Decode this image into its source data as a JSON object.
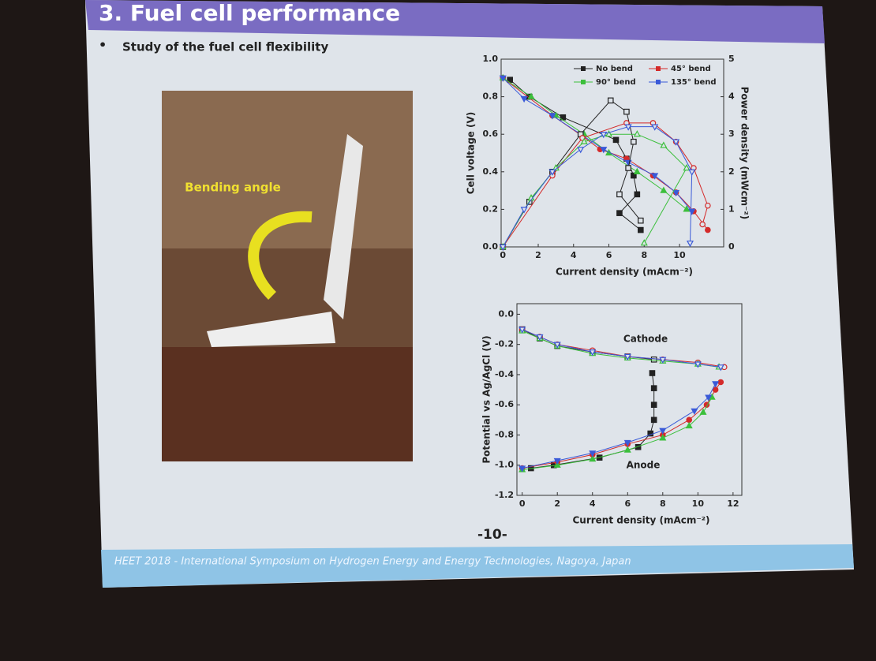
{
  "slide": {
    "title": "3. Fuel cell performance",
    "bullet": "Study of the fuel cell flexibility",
    "photo_label": "Bending angle",
    "page_number": "-10-",
    "footer": "HEET 2018 - International Symposium on Hydrogen Energy and Energy Technologies, Nagoya, Japan"
  },
  "chart_data": [
    {
      "type": "line",
      "xlabel": "Current density (mAcm⁻²)",
      "ylabel": "Cell voltage (V)",
      "y2label": "Power density (mWcm⁻²)",
      "xlim": [
        -0.1,
        12.5
      ],
      "ylim": [
        0,
        1.0
      ],
      "y2lim": [
        0,
        5
      ],
      "xticks": [
        0,
        2,
        4,
        6,
        8,
        10
      ],
      "yticks": [
        {
          "value": 0,
          "label": "0.0"
        },
        {
          "value": 0.2,
          "label": "0.2"
        },
        {
          "value": 0.4,
          "label": "0.4"
        },
        {
          "value": 0.6,
          "label": "0.6"
        },
        {
          "value": 0.8,
          "label": "0.8"
        },
        {
          "value": 1.0,
          "label": "1.0"
        }
      ],
      "y2ticks": [
        0,
        1,
        2,
        3,
        4,
        5
      ],
      "legend": "upper right",
      "series": [
        {
          "name": "No bend",
          "color": "#222222",
          "marker": "square",
          "filled": true,
          "x": [
            0.4,
            1.5,
            3.4,
            6.4,
            7.0,
            7.4,
            7.6,
            6.6,
            7.8
          ],
          "values": [
            0.89,
            0.8,
            0.69,
            0.57,
            0.47,
            0.38,
            0.28,
            0.18,
            0.09
          ]
        },
        {
          "name": "45° bend",
          "color": "#d42a2a",
          "marker": "circle",
          "filled": true,
          "x": [
            0,
            2.8,
            4.5,
            5.5,
            7.0,
            8.5,
            9.8,
            10.8,
            11.6
          ],
          "values": [
            0.9,
            0.7,
            0.59,
            0.52,
            0.47,
            0.38,
            0.29,
            0.19,
            0.09
          ]
        },
        {
          "name": "90° bend",
          "color": "#3cbf3c",
          "marker": "triangle-up",
          "filled": true,
          "x": [
            0,
            1.6,
            3.0,
            4.6,
            6.0,
            7.6,
            9.1,
            10.4
          ],
          "values": [
            0.9,
            0.8,
            0.7,
            0.6,
            0.5,
            0.4,
            0.3,
            0.2
          ]
        },
        {
          "name": "135° bend",
          "color": "#3a5ad8",
          "marker": "triangle-down",
          "filled": true,
          "x": [
            0,
            1.2,
            2.8,
            4.4,
            5.7,
            7.1,
            8.6,
            9.8,
            10.7
          ],
          "values": [
            0.9,
            0.79,
            0.7,
            0.6,
            0.52,
            0.45,
            0.38,
            0.29,
            0.19
          ]
        },
        {
          "color": "#222222",
          "marker": "square",
          "filled": false,
          "axis": "y2",
          "x": [
            0,
            1.5,
            2.8,
            4.4,
            6.1,
            7.0,
            7.4,
            7.1,
            6.6,
            7.8
          ],
          "values": [
            0,
            1.2,
            2.0,
            3.0,
            3.9,
            3.6,
            2.8,
            2.1,
            1.4,
            0.7
          ]
        },
        {
          "color": "#d42a2a",
          "marker": "circle",
          "filled": false,
          "axis": "y2",
          "x": [
            0,
            2.8,
            4.5,
            7.0,
            8.5,
            9.8,
            10.8,
            11.6,
            11.3
          ],
          "values": [
            0,
            1.9,
            2.9,
            3.3,
            3.3,
            2.8,
            2.1,
            1.1,
            0.6
          ]
        },
        {
          "color": "#3cbf3c",
          "marker": "triangle-up",
          "filled": false,
          "axis": "y2",
          "x": [
            0,
            1.6,
            3.0,
            4.6,
            6.0,
            7.6,
            9.1,
            10.4,
            8.0
          ],
          "values": [
            0,
            1.3,
            2.1,
            2.8,
            3.0,
            3.0,
            2.7,
            2.1,
            0.1
          ]
        },
        {
          "color": "#3a5ad8",
          "marker": "triangle-down",
          "filled": false,
          "axis": "y2",
          "x": [
            0,
            1.2,
            2.8,
            4.4,
            5.7,
            7.1,
            8.6,
            9.8,
            10.7,
            10.6
          ],
          "values": [
            0,
            1.0,
            2.0,
            2.6,
            3.0,
            3.2,
            3.2,
            2.8,
            2.0,
            0.1
          ]
        }
      ]
    },
    {
      "type": "line",
      "xlabel": "Current density (mAcm⁻²)",
      "ylabel": "Potential vs Ag/AgCl (V)",
      "xlim": [
        -0.3,
        12.5
      ],
      "ylim": [
        -1.2,
        0.07
      ],
      "xticks": [
        0,
        2,
        4,
        6,
        8,
        10,
        12
      ],
      "yticks": [
        {
          "value": 0,
          "label": "0.0"
        },
        {
          "value": -0.2,
          "label": "-0.2"
        },
        {
          "value": -0.4,
          "label": "-0.4"
        },
        {
          "value": -0.6,
          "label": "-0.6"
        },
        {
          "value": -0.8,
          "label": "-0.8"
        },
        {
          "value": -1.0,
          "label": "-1.0"
        },
        {
          "value": -1.2,
          "label": "-1.2"
        }
      ],
      "annotations": [
        "Cathode",
        "Anode"
      ],
      "series": [
        {
          "color": "#222222",
          "marker": "square",
          "filled": false,
          "x": [
            0,
            1,
            2,
            4,
            6,
            7.5
          ],
          "values": [
            -0.1,
            -0.16,
            -0.21,
            -0.25,
            -0.28,
            -0.3
          ]
        },
        {
          "color": "#d42a2a",
          "marker": "circle",
          "filled": false,
          "x": [
            0,
            1,
            2,
            4,
            6,
            8,
            10,
            11.5
          ],
          "values": [
            -0.1,
            -0.15,
            -0.2,
            -0.24,
            -0.28,
            -0.3,
            -0.32,
            -0.35
          ]
        },
        {
          "color": "#3cbf3c",
          "marker": "triangle-up",
          "filled": false,
          "x": [
            0,
            1,
            2,
            4,
            6,
            8,
            10,
            11.2
          ],
          "values": [
            -0.11,
            -0.16,
            -0.21,
            -0.26,
            -0.29,
            -0.31,
            -0.33,
            -0.35
          ]
        },
        {
          "color": "#3a5ad8",
          "marker": "triangle-down",
          "filled": false,
          "x": [
            0,
            1,
            2,
            4,
            6,
            8,
            10,
            11.3
          ],
          "values": [
            -0.1,
            -0.15,
            -0.2,
            -0.25,
            -0.28,
            -0.3,
            -0.33,
            -0.35
          ]
        },
        {
          "color": "#222222",
          "marker": "square",
          "filled": true,
          "x": [
            0.5,
            1.8,
            4.4,
            6.6,
            7.3,
            7.5,
            7.5,
            7.5,
            7.4
          ],
          "values": [
            -1.02,
            -1.0,
            -0.95,
            -0.88,
            -0.79,
            -0.7,
            -0.6,
            -0.49,
            -0.39
          ]
        },
        {
          "color": "#d42a2a",
          "marker": "circle",
          "filled": true,
          "x": [
            0,
            2,
            4,
            6,
            8,
            9.5,
            10.5,
            11,
            11.3
          ],
          "values": [
            -1.02,
            -0.98,
            -0.93,
            -0.86,
            -0.8,
            -0.7,
            -0.6,
            -0.5,
            -0.45
          ]
        },
        {
          "color": "#3cbf3c",
          "marker": "triangle-up",
          "filled": true,
          "x": [
            0,
            2,
            4,
            6,
            8,
            9.5,
            10.3,
            10.8
          ],
          "values": [
            -1.03,
            -1.0,
            -0.96,
            -0.9,
            -0.82,
            -0.74,
            -0.65,
            -0.55
          ]
        },
        {
          "color": "#3a5ad8",
          "marker": "triangle-down",
          "filled": true,
          "x": [
            0,
            2,
            4,
            6,
            8,
            9.8,
            10.6,
            11
          ],
          "values": [
            -1.02,
            -0.97,
            -0.92,
            -0.85,
            -0.77,
            -0.64,
            -0.55,
            -0.46
          ]
        }
      ]
    }
  ]
}
